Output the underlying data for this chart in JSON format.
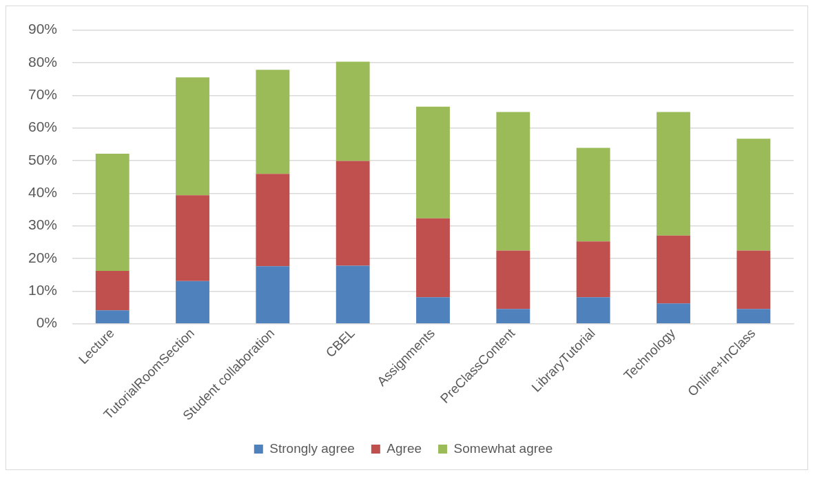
{
  "chart_data": {
    "type": "bar",
    "stacked": true,
    "categories": [
      "Lecture",
      "TutorialRoomSection",
      "Student collaboration",
      "CBEL",
      "Assignments",
      "PreClassContent",
      "LibraryTutorial",
      "Technology",
      "Online+InClass"
    ],
    "series": [
      {
        "name": "Strongly agree",
        "color": "#4f81bd",
        "values": [
          4.1,
          13.1,
          17.6,
          17.8,
          8.1,
          4.5,
          8.1,
          6.2,
          4.5
        ]
      },
      {
        "name": "Agree",
        "color": "#c0504d",
        "values": [
          12.1,
          26.3,
          28.3,
          32.1,
          24.2,
          17.9,
          17.1,
          20.8,
          17.9
        ]
      },
      {
        "name": "Somewhat agree",
        "color": "#9bbb59",
        "values": [
          35.9,
          36.1,
          31.9,
          30.4,
          34.2,
          42.5,
          28.7,
          37.9,
          34.3
        ]
      }
    ],
    "ylim": [
      0,
      90
    ],
    "yticks": [
      {
        "value": 0,
        "label": "0%"
      },
      {
        "value": 10,
        "label": "10%"
      },
      {
        "value": 20,
        "label": "20%"
      },
      {
        "value": 30,
        "label": "30%"
      },
      {
        "value": 40,
        "label": "40%"
      },
      {
        "value": 50,
        "label": "50%"
      },
      {
        "value": 60,
        "label": "60%"
      },
      {
        "value": 70,
        "label": "70%"
      },
      {
        "value": 80,
        "label": "80%"
      },
      {
        "value": 90,
        "label": "90%"
      }
    ],
    "grid": "y",
    "legend": "bottom"
  }
}
